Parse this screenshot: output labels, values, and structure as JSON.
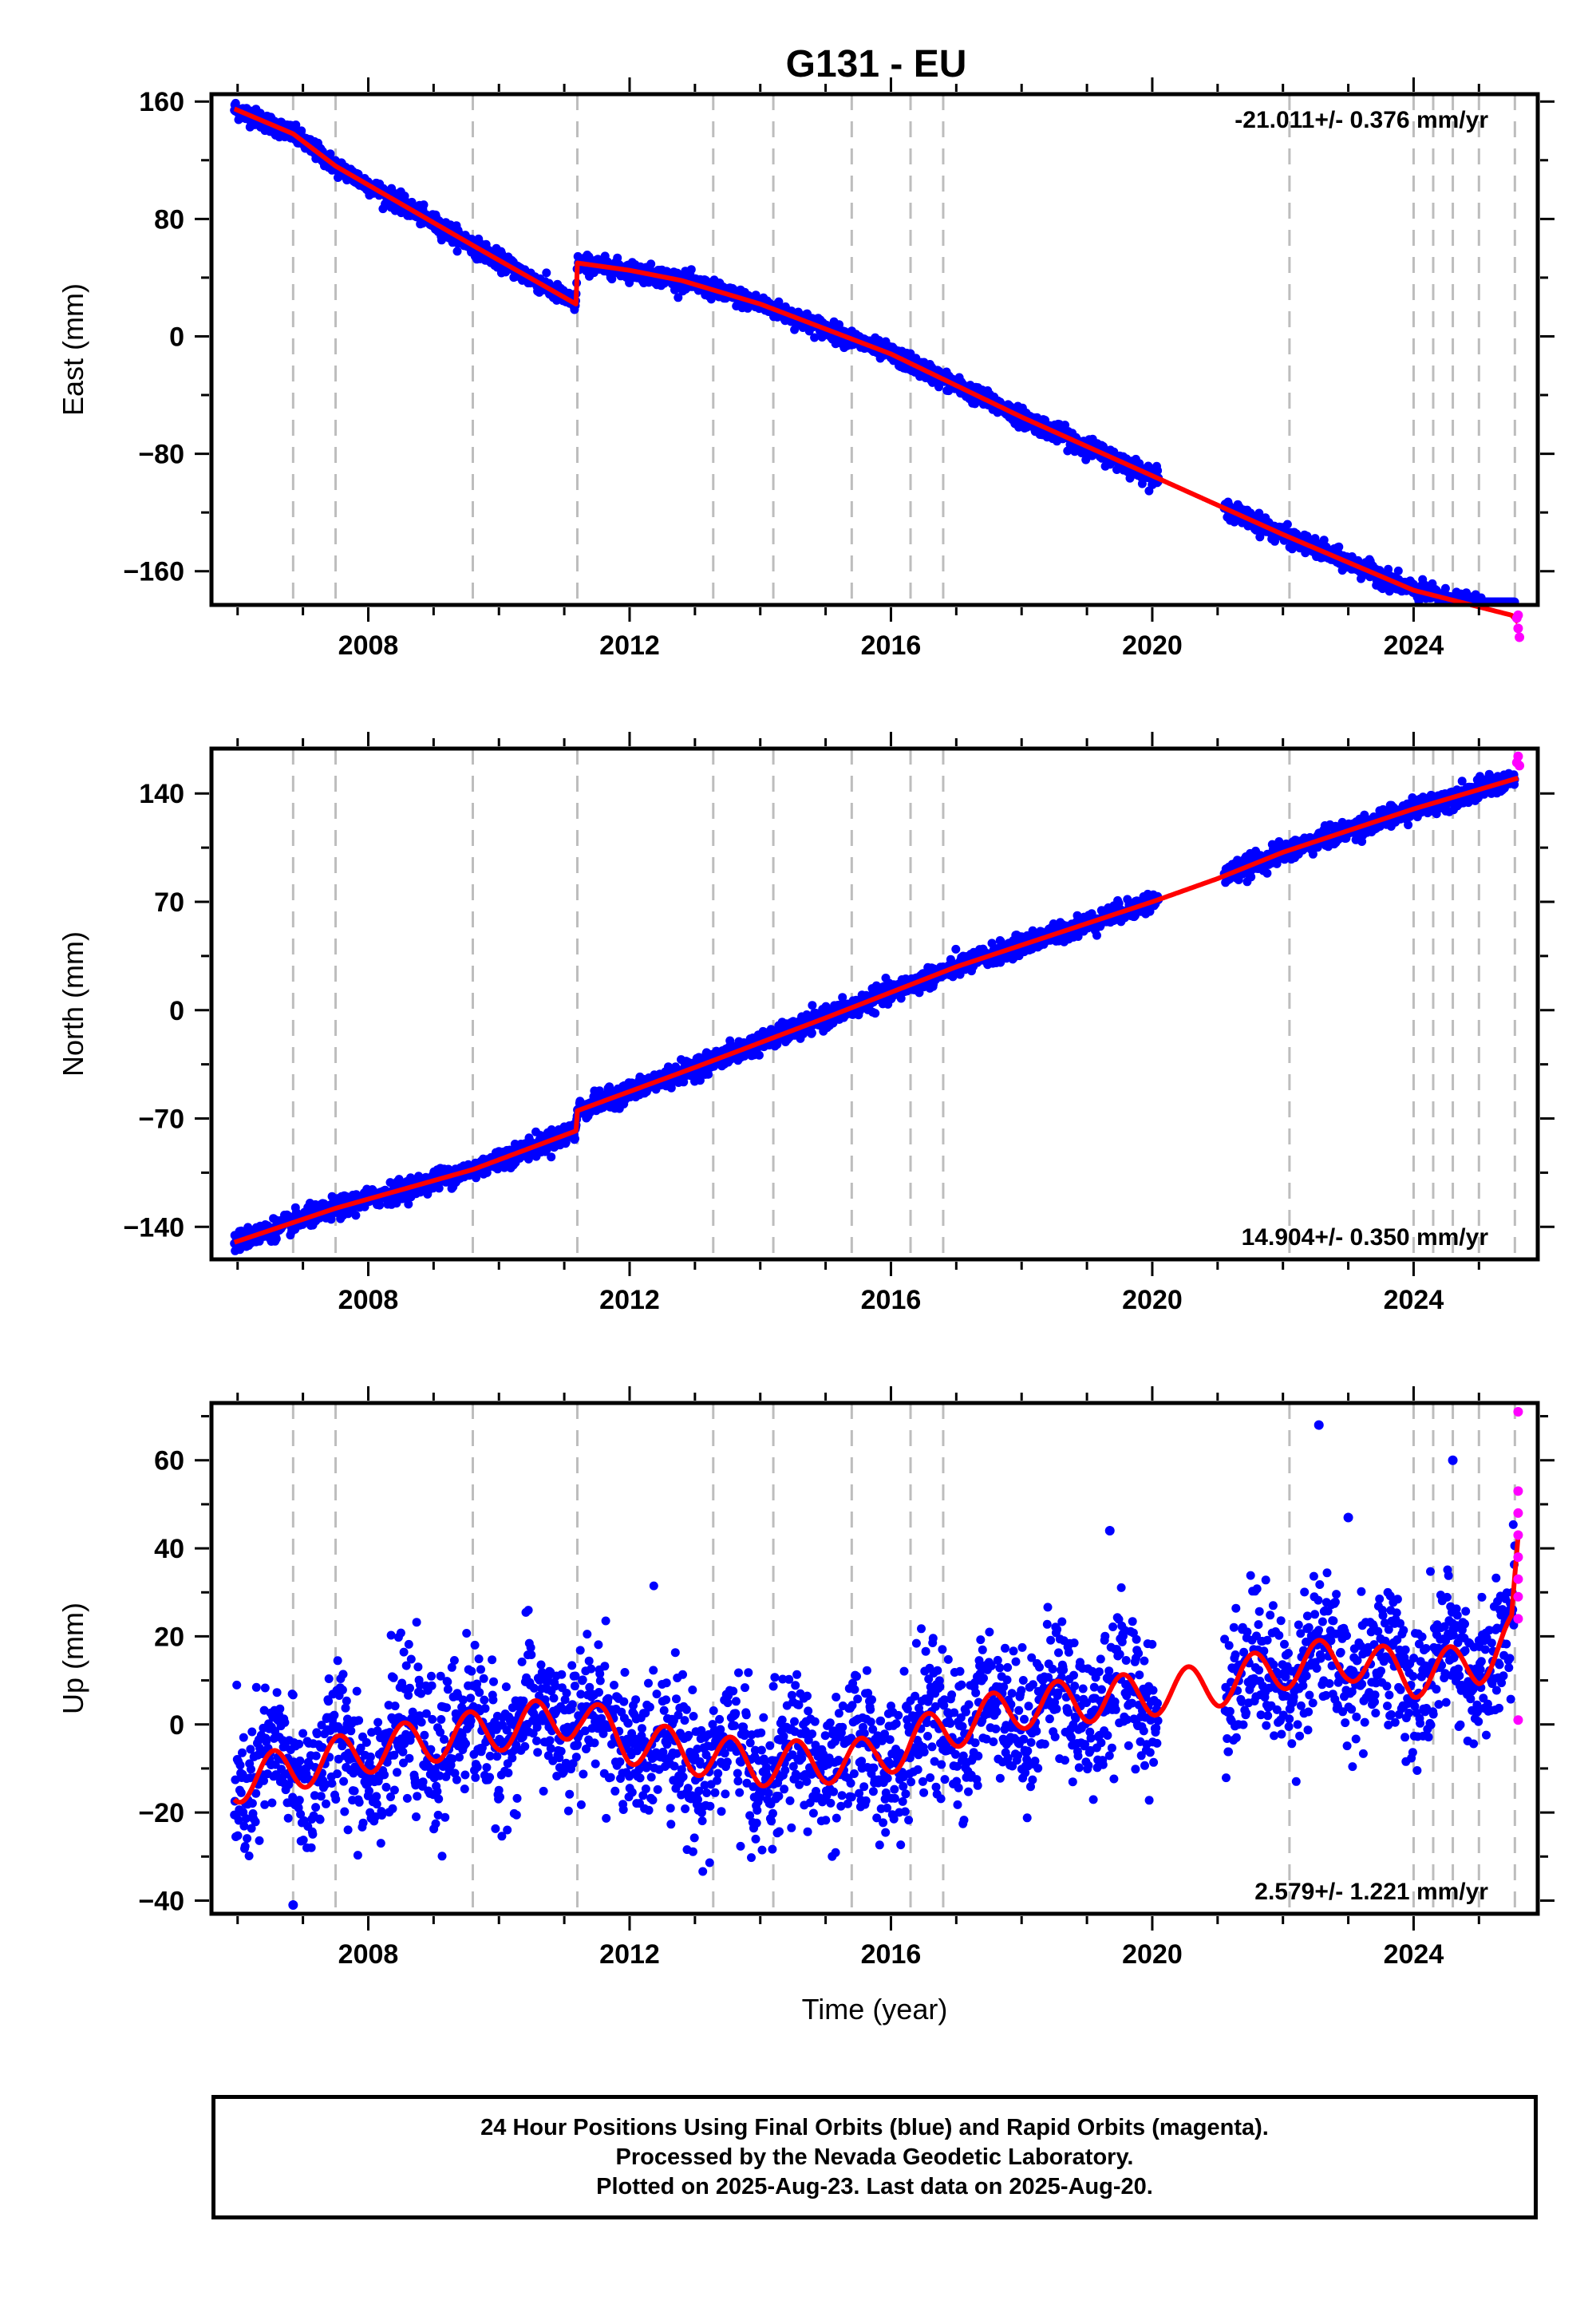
{
  "title": "G131 - EU",
  "caption": {
    "line1": "24 Hour Positions Using Final Orbits (blue) and Rapid Orbits (magenta).",
    "line2": "Processed by the Nevada Geodetic Laboratory.",
    "line3": "Plotted on 2025-Aug-23. Last data on 2025-Aug-20."
  },
  "colors": {
    "final_orbits": "#0000ff",
    "rapid_orbits": "#ff00ff",
    "model": "#ff0000",
    "event_lines": "#bdbdbd"
  },
  "chart_data": [
    {
      "type": "scatter",
      "ylabel": "East (mm)",
      "xlabel": "",
      "xlim": [
        2005.6,
        2025.9
      ],
      "ylim": [
        -183,
        165
      ],
      "xticks": [
        2008,
        2012,
        2016,
        2020,
        2024
      ],
      "yticks": [
        -160,
        -80,
        0,
        80,
        160
      ],
      "rate": "-21.011+/- 0.376 mm/yr",
      "rate_position": "top-right",
      "event_lines": [
        2006.85,
        2007.5,
        2009.6,
        2011.2,
        2013.28,
        2014.2,
        2015.4,
        2016.3,
        2016.8,
        2022.1,
        2024.0,
        2024.3,
        2024.6,
        2025.0,
        2025.55
      ],
      "model_trend": [
        [
          2005.95,
          155
        ],
        [
          2006.85,
          138
        ],
        [
          2007.5,
          116
        ],
        [
          2009.6,
          62
        ],
        [
          2011.18,
          22
        ],
        [
          2011.2,
          50
        ],
        [
          2012.0,
          45
        ],
        [
          2012.8,
          38
        ],
        [
          2014.0,
          22
        ],
        [
          2016.0,
          -12
        ],
        [
          2018.0,
          -55
        ],
        [
          2020.1,
          -97
        ],
        [
          2021.0,
          -115
        ],
        [
          2022.0,
          -135
        ],
        [
          2024.0,
          -173
        ],
        [
          2025.5,
          -190
        ],
        [
          2025.6,
          -195
        ]
      ],
      "series": [
        {
          "name": "Final Orbits",
          "color": "#0000ff",
          "x_range": [
            2005.95,
            2025.55
          ],
          "gap": [
            2020.1,
            2021.1
          ],
          "noise": 3.0
        },
        {
          "name": "Rapid Orbits",
          "color": "#ff00ff",
          "points": [
            [
              2025.58,
              -192
            ],
            [
              2025.6,
              -199
            ],
            [
              2025.62,
              -205
            ],
            [
              2025.6,
              -190
            ]
          ]
        }
      ]
    },
    {
      "type": "scatter",
      "ylabel": "North (mm)",
      "xlabel": "",
      "xlim": [
        2005.6,
        2025.9
      ],
      "ylim": [
        -161,
        169
      ],
      "xticks": [
        2008,
        2012,
        2016,
        2020,
        2024
      ],
      "yticks": [
        -140,
        -70,
        0,
        70,
        140
      ],
      "rate": "14.904+/- 0.350 mm/yr",
      "rate_position": "bottom-right",
      "event_lines": [
        2006.85,
        2007.5,
        2009.6,
        2011.2,
        2013.28,
        2014.2,
        2015.4,
        2016.3,
        2016.8,
        2022.1,
        2024.0,
        2024.3,
        2024.6,
        2025.0,
        2025.55
      ],
      "model_trend": [
        [
          2005.95,
          -150
        ],
        [
          2007.5,
          -128
        ],
        [
          2009.6,
          -103
        ],
        [
          2011.18,
          -78
        ],
        [
          2011.2,
          -65
        ],
        [
          2013.0,
          -37
        ],
        [
          2015.0,
          -5
        ],
        [
          2017.0,
          28
        ],
        [
          2020.0,
          70
        ],
        [
          2021.0,
          85
        ],
        [
          2022.0,
          102
        ],
        [
          2024.0,
          130
        ],
        [
          2025.6,
          150
        ]
      ],
      "series": [
        {
          "name": "Final Orbits",
          "color": "#0000ff",
          "x_range": [
            2005.95,
            2025.55
          ],
          "gap": [
            2020.1,
            2021.1
          ],
          "noise": 3.2
        },
        {
          "name": "Rapid Orbits",
          "color": "#ff00ff",
          "points": [
            [
              2025.58,
              160
            ],
            [
              2025.6,
              164
            ],
            [
              2025.62,
              158
            ]
          ]
        }
      ]
    },
    {
      "type": "scatter",
      "ylabel": "Up (mm)",
      "xlabel": "Time (year)",
      "xlim": [
        2005.6,
        2025.9
      ],
      "ylim": [
        -43,
        73
      ],
      "xticks": [
        2008,
        2012,
        2016,
        2020,
        2024
      ],
      "yticks": [
        -40,
        -20,
        0,
        20,
        40,
        60
      ],
      "rate": "2.579+/- 1.221 mm/yr",
      "rate_position": "bottom-right",
      "event_lines": [
        2006.85,
        2007.5,
        2009.6,
        2011.2,
        2013.28,
        2014.2,
        2015.4,
        2016.3,
        2016.8,
        2022.1,
        2024.0,
        2024.3,
        2024.6,
        2025.0,
        2025.55
      ],
      "model_trend": [
        [
          2005.95,
          -13
        ],
        [
          2008.0,
          -6
        ],
        [
          2011.2,
          2
        ],
        [
          2012.0,
          -4
        ],
        [
          2014.0,
          -9
        ],
        [
          2015.7,
          -8
        ],
        [
          2016.8,
          -1
        ],
        [
          2018.0,
          4
        ],
        [
          2020.0,
          7
        ],
        [
          2021.0,
          9
        ],
        [
          2022.0,
          13
        ],
        [
          2023.0,
          15
        ],
        [
          2024.0,
          11
        ],
        [
          2025.0,
          14
        ],
        [
          2025.5,
          20
        ],
        [
          2025.6,
          38
        ]
      ],
      "seasonal_amplitude": 5,
      "series": [
        {
          "name": "Final Orbits",
          "color": "#0000ff",
          "x_range": [
            2005.95,
            2025.55
          ],
          "gap": [
            2020.1,
            2021.1
          ],
          "noise": 8.0
        },
        {
          "name": "Rapid Orbits",
          "color": "#ff00ff",
          "points": [
            [
              2025.6,
              71
            ],
            [
              2025.6,
              53
            ],
            [
              2025.6,
              48
            ],
            [
              2025.6,
              43
            ],
            [
              2025.6,
              38
            ],
            [
              2025.6,
              33
            ],
            [
              2025.6,
              29
            ],
            [
              2025.6,
              24
            ],
            [
              2025.6,
              1
            ]
          ]
        }
      ],
      "outliers": [
        [
          2006.85,
          -41
        ],
        [
          2022.55,
          68
        ],
        [
          2024.6,
          60
        ],
        [
          2019.35,
          44
        ],
        [
          2023.0,
          47
        ]
      ]
    }
  ]
}
